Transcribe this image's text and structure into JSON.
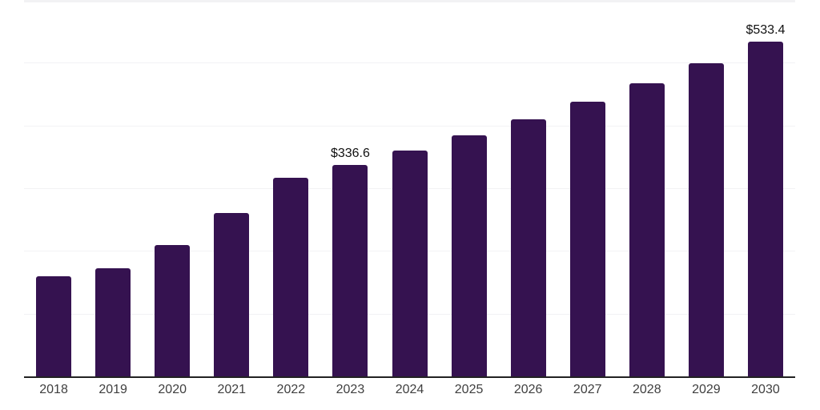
{
  "chart_data": {
    "type": "bar",
    "title": "",
    "xlabel": "",
    "ylabel": "",
    "categories": [
      "2018",
      "2019",
      "2020",
      "2021",
      "2022",
      "2023",
      "2024",
      "2025",
      "2026",
      "2027",
      "2028",
      "2029",
      "2030"
    ],
    "values": [
      160.0,
      172.7,
      209.5,
      260.3,
      316.2,
      336.6,
      359.5,
      383.9,
      410.0,
      437.9,
      467.7,
      499.5,
      533.4
    ],
    "point_labels": [
      "",
      "",
      "",
      "",
      "",
      "$336.6",
      "",
      "",
      "",
      "",
      "",
      "",
      "$533.4"
    ],
    "ylim": [
      0,
      600
    ],
    "gridlines": [
      600,
      500,
      400,
      300,
      200,
      100
    ],
    "grid": true,
    "legend": "none",
    "y_axis_tick_labels_visible": false
  },
  "colors": {
    "background": "#ffffff",
    "bar": "#351250",
    "gridline": "#f2f2f4",
    "axis": "#222222",
    "tick_label": "#3f3f3f",
    "data_label": "#111111"
  }
}
